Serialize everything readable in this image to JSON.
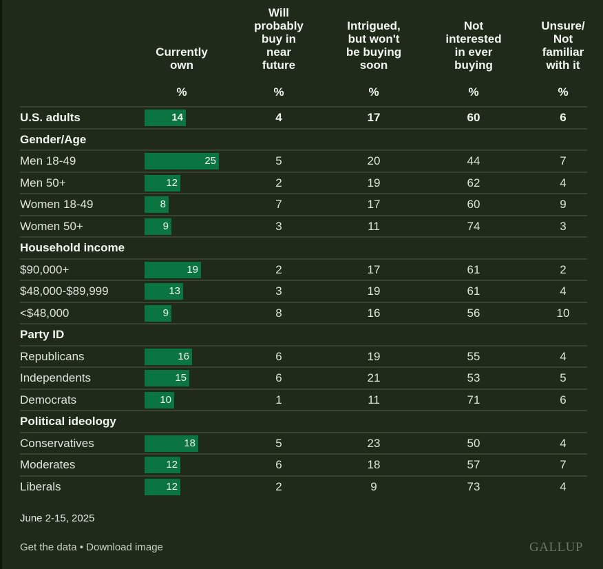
{
  "columns": [
    {
      "title": "Currently\nown",
      "unit": "%"
    },
    {
      "title": "Will\nprobably\nbuy in\nnear\nfuture",
      "unit": "%"
    },
    {
      "title": "Intrigued,\nbut won't\nbe buying\nsoon",
      "unit": "%"
    },
    {
      "title": "Not\ninterested\nin ever\nbuying",
      "unit": "%"
    },
    {
      "title": "Unsure/\nNot\nfamiliar\nwith it",
      "unit": "%"
    }
  ],
  "colors": {
    "background": "#1f2a1b",
    "bar": "#0a7541",
    "separator": "#38442f"
  },
  "chart_data": {
    "type": "table",
    "bar_column": "Currently own",
    "rows": [
      {
        "kind": "total",
        "label": "U.S. adults",
        "values": [
          14,
          4,
          17,
          60,
          6
        ]
      },
      {
        "kind": "section",
        "label": "Gender/Age"
      },
      {
        "kind": "data",
        "label": "Men 18-49",
        "values": [
          25,
          5,
          20,
          44,
          7
        ]
      },
      {
        "kind": "data",
        "label": "Men 50+",
        "values": [
          12,
          2,
          19,
          62,
          4
        ]
      },
      {
        "kind": "data",
        "label": "Women 18-49",
        "values": [
          8,
          7,
          17,
          60,
          9
        ]
      },
      {
        "kind": "data",
        "label": "Women 50+",
        "values": [
          9,
          3,
          11,
          74,
          3
        ]
      },
      {
        "kind": "section",
        "label": "Household income"
      },
      {
        "kind": "data",
        "label": "$90,000+",
        "values": [
          19,
          2,
          17,
          61,
          2
        ]
      },
      {
        "kind": "data",
        "label": "$48,000-$89,999",
        "values": [
          13,
          3,
          19,
          61,
          4
        ]
      },
      {
        "kind": "data",
        "label": "<$48,000",
        "values": [
          9,
          8,
          16,
          56,
          10
        ]
      },
      {
        "kind": "section",
        "label": "Party ID"
      },
      {
        "kind": "data",
        "label": "Republicans",
        "values": [
          16,
          6,
          19,
          55,
          4
        ]
      },
      {
        "kind": "data",
        "label": "Independents",
        "values": [
          15,
          6,
          21,
          53,
          5
        ]
      },
      {
        "kind": "data",
        "label": "Democrats",
        "values": [
          10,
          1,
          11,
          71,
          6
        ]
      },
      {
        "kind": "section",
        "label": "Political ideology"
      },
      {
        "kind": "data",
        "label": "Conservatives",
        "values": [
          18,
          5,
          23,
          50,
          4
        ]
      },
      {
        "kind": "data",
        "label": "Moderates",
        "values": [
          12,
          6,
          18,
          57,
          7
        ]
      },
      {
        "kind": "data",
        "label": "Liberals",
        "values": [
          12,
          2,
          9,
          73,
          4
        ]
      }
    ]
  },
  "footer": {
    "date": "June 2-15, 2025",
    "get_data": "Get the data",
    "bullet": " • ",
    "download": "Download image",
    "logo": "GALLUP"
  }
}
